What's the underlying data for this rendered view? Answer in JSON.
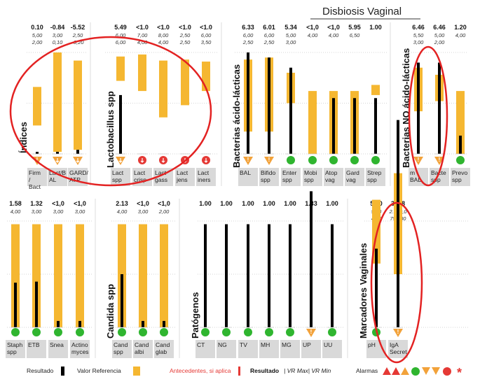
{
  "header": {
    "title": "Disbiosis Vaginal"
  },
  "colors": {
    "result": "#000000",
    "reference": "#f5b731",
    "alert_red": "#e53935",
    "ok_green": "#2fb52f",
    "warn_orange": "#f2a23a",
    "label_bg": "#d9d9d9",
    "annotation_ring": "#e32222"
  },
  "chart_data": {
    "type": "bar",
    "groups": [
      {
        "section_label": "Índices",
        "items": [
          {
            "label": "Firm / Bact",
            "value": "0.10",
            "ref_max": "5,00",
            "ref_min": "2,00",
            "result_level": 0.02,
            "ref_range": [
              0.28,
              0.66
            ],
            "alarm": "warn"
          },
          {
            "label": "Lact/B AL",
            "value": "-0.84",
            "ref_max": "3,00",
            "ref_min": "0,10",
            "result_level": 0.02,
            "ref_range": [
              0.02,
              1.0
            ],
            "alarm": "down-warn"
          },
          {
            "label": "GARD/ ATP",
            "value": "-5.52",
            "ref_max": "2,50",
            "ref_min": "-0,20",
            "result_level": 0.04,
            "ref_range": [
              0.04,
              0.92
            ],
            "alarm": "down-warn"
          }
        ]
      },
      {
        "section_label": "Lactobacillus spp",
        "items": [
          {
            "label": "Lact spp",
            "value": "5.49",
            "ref_max": "6,00",
            "ref_min": "6,00",
            "result_level": 0.58,
            "ref_range": [
              0.72,
              0.96
            ],
            "alarm": "down-warn"
          },
          {
            "label": "Lact crisp",
            "value": "<1.0",
            "ref_max": "7,00",
            "ref_min": "4,00",
            "result_level": 0.0,
            "ref_range": [
              0.62,
              0.98
            ],
            "alarm": "down-red"
          },
          {
            "label": "Lact gass",
            "value": "<1.0",
            "ref_max": "8,00",
            "ref_min": "4,00",
            "result_level": 0.0,
            "ref_range": [
              0.36,
              0.92
            ],
            "alarm": "down-red"
          },
          {
            "label": "Lact jens",
            "value": "<1.0",
            "ref_max": "2,50",
            "ref_min": "2,50",
            "result_level": 0.0,
            "ref_range": [
              0.48,
              0.93
            ],
            "alarm": "down-red"
          },
          {
            "label": "Lact iners",
            "value": "<1.0",
            "ref_max": "6,00",
            "ref_min": "3,50",
            "result_level": 0.0,
            "ref_range": [
              0.62,
              0.91
            ],
            "alarm": "down-red"
          }
        ]
      },
      {
        "section_label": "Bacterias ácido-lácticas",
        "items": [
          {
            "label": "BAL",
            "value": "6.33",
            "ref_max": "6,00",
            "ref_min": "2,50",
            "result_level": 1.0,
            "ref_range": [
              0.22,
              0.93
            ],
            "alarm": "warn"
          },
          {
            "label": "Bifido spp",
            "value": "6.01",
            "ref_max": "6,00",
            "ref_min": "2,50",
            "result_level": 0.95,
            "ref_range": [
              0.22,
              0.95
            ],
            "alarm": "warn"
          },
          {
            "label": "Enter spp",
            "value": "5.34",
            "ref_max": "5,00",
            "ref_min": "3,00",
            "result_level": 0.85,
            "ref_range": [
              0.5,
              0.8
            ],
            "alarm": "ok"
          },
          {
            "label": "Mobi spp",
            "value": "<1,0",
            "ref_max": "4,00",
            "ref_min": "",
            "result_level": 0.0,
            "ref_range": [
              0.0,
              0.62
            ],
            "alarm": "ok"
          },
          {
            "label": "Atop vag",
            "value": "<1,0",
            "ref_max": "4,00",
            "ref_min": "",
            "result_level": 0.55,
            "ref_range": [
              0.0,
              0.62
            ],
            "alarm": "ok"
          },
          {
            "label": "Gard vag",
            "value": "5.95",
            "ref_max": "6,50",
            "ref_min": "",
            "result_level": 0.55,
            "ref_range": [
              0.0,
              0.62
            ],
            "alarm": "ok"
          },
          {
            "label": "Strep spp",
            "value": "1.00",
            "ref_max": "",
            "ref_min": "",
            "result_level": 0.55,
            "ref_range": [
              0.58,
              0.68
            ],
            "alarm": "ok"
          }
        ]
      },
      {
        "section_label": "Bacterias NO ácido-lácticas",
        "items": [
          {
            "label": "m BAL",
            "value": "6.46",
            "ref_max": "5,50",
            "ref_min": "3,00",
            "result_level": 0.9,
            "ref_range": [
              0.42,
              0.85
            ],
            "alarm": "warn"
          },
          {
            "label": "Bacte spp",
            "value": "6.46",
            "ref_max": "5,00",
            "ref_min": "2,00",
            "result_level": 0.9,
            "ref_range": [
              0.52,
              0.78
            ],
            "alarm": "warn"
          },
          {
            "label": "Prevo spp",
            "value": "1.20",
            "ref_max": "4,00",
            "ref_min": "",
            "result_level": 0.18,
            "ref_range": [
              0.0,
              0.62
            ],
            "alarm": "ok"
          }
        ]
      }
    ],
    "groups_row2": [
      {
        "section_label": "",
        "items": [
          {
            "label": "Staph spp",
            "value": "1.58",
            "ref_max": "4,00",
            "ref_min": "",
            "result_level": 0.42,
            "ref_range": [
              0.0,
              0.97
            ],
            "alarm": "ok"
          },
          {
            "label": "ETB",
            "value": "1.32",
            "ref_max": "3,00",
            "ref_min": "",
            "result_level": 0.43,
            "ref_range": [
              0.0,
              0.97
            ],
            "alarm": "ok"
          },
          {
            "label": "Snea",
            "value": "<1,0",
            "ref_max": "3,00",
            "ref_min": "",
            "result_level": 0.06,
            "ref_range": [
              0.0,
              0.97
            ],
            "alarm": "ok"
          },
          {
            "label": "Actino myces",
            "value": "<1,0",
            "ref_max": "3,00",
            "ref_min": "",
            "result_level": 0.06,
            "ref_range": [
              0.0,
              0.97
            ],
            "alarm": "ok"
          }
        ]
      },
      {
        "section_label": "Candida spp",
        "items": [
          {
            "label": "Cand spp",
            "value": "2.13",
            "ref_max": "4,00",
            "ref_min": "",
            "result_level": 0.5,
            "ref_range": [
              0.0,
              0.97
            ],
            "alarm": "ok"
          },
          {
            "label": "Cand albi",
            "value": "<1,0",
            "ref_max": "3,00",
            "ref_min": "",
            "result_level": 0.06,
            "ref_range": [
              0.0,
              0.97
            ],
            "alarm": "ok"
          },
          {
            "label": "Cand glab",
            "value": "<1,0",
            "ref_max": "2,00",
            "ref_min": "",
            "result_level": 0.06,
            "ref_range": [
              0.0,
              0.97
            ],
            "alarm": "ok"
          }
        ]
      },
      {
        "section_label": "Patógenos",
        "items": [
          {
            "label": "CT",
            "value": "1.00",
            "ref_max": "",
            "ref_min": "",
            "result_level": 0.97,
            "ref_range": [
              0,
              0
            ],
            "alarm": "ok"
          },
          {
            "label": "NG",
            "value": "1.00",
            "ref_max": "",
            "ref_min": "",
            "result_level": 0.97,
            "ref_range": [
              0,
              0
            ],
            "alarm": "ok"
          },
          {
            "label": "TV",
            "value": "1.00",
            "ref_max": "",
            "ref_min": "",
            "result_level": 0.97,
            "ref_range": [
              0,
              0
            ],
            "alarm": "ok"
          },
          {
            "label": "MH",
            "value": "1.00",
            "ref_max": "",
            "ref_min": "",
            "result_level": 0.97,
            "ref_range": [
              0,
              0
            ],
            "alarm": "ok"
          },
          {
            "label": "MG",
            "value": "1.00",
            "ref_max": "",
            "ref_min": "",
            "result_level": 0.97,
            "ref_range": [
              0,
              0
            ],
            "alarm": "ok"
          },
          {
            "label": "UP",
            "value": "1.33",
            "ref_max": "",
            "ref_min": "",
            "result_level": 1.28,
            "ref_range": [
              0,
              0
            ],
            "alarm": "warn"
          },
          {
            "label": "UU",
            "value": "1.00",
            "ref_max": "",
            "ref_min": "",
            "result_level": 0.97,
            "ref_range": [
              0,
              0
            ],
            "alarm": "ok"
          }
        ]
      },
      {
        "section_label": "Marcadores Vaginales",
        "items": [
          {
            "label": "pH",
            "value": "5.00",
            "ref_max": "5,50",
            "ref_min": "4,00",
            "result_level": 0.74,
            "ref_range": [
              0.6,
              1.2
            ],
            "alarm": "ok"
          },
          {
            "label": "IgA Secret",
            "value": "3148",
            "ref_max": "2.000,0",
            "ref_min": "750,00",
            "result_level": 1.95,
            "ref_range": [
              0.5,
              1.45
            ],
            "alarm": "warn"
          }
        ]
      }
    ]
  },
  "legend": {
    "result_label": "Resultado",
    "reference_label": "Valor Referencia",
    "antecedents_label": "Antecedentes, si aplica",
    "vr_label_bold": "Resultado",
    "vr_label_rest": "| VR Max| VR Min",
    "alarms_label": "Alarmas",
    "asterisk": "*"
  }
}
